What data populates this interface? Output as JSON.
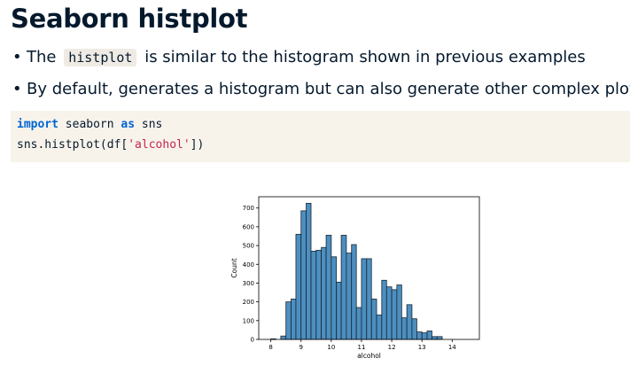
{
  "slide": {
    "title": "Seaborn histplot",
    "bullets": [
      {
        "before": "The",
        "code": "histplot",
        "after": "is similar to the histogram shown in previous examples"
      },
      {
        "text": "By default, generates a histogram but can also generate other complex plots"
      }
    ],
    "code": {
      "line1": {
        "kw1": "import",
        "mod": " seaborn ",
        "kw2": "as",
        "alias": " sns"
      },
      "line2": {
        "pre": "sns.histplot(df[",
        "str": "'alcohol'",
        "post": "])"
      }
    }
  },
  "chart_data": {
    "type": "bar",
    "xlabel": "alcohol",
    "ylabel": "Count",
    "xlim": [
      7.6,
      14.9
    ],
    "ylim": [
      0,
      760
    ],
    "xticks": [
      8,
      9,
      10,
      11,
      12,
      13,
      14
    ],
    "yticks": [
      0,
      100,
      200,
      300,
      400,
      500,
      600,
      700
    ],
    "bar_color": "#4c8fc0",
    "bar_edge_color": "#1a2533",
    "bins": [
      {
        "x0": 8.0,
        "x1": 8.17,
        "value": 3
      },
      {
        "x0": 8.17,
        "x1": 8.33,
        "value": 0
      },
      {
        "x0": 8.33,
        "x1": 8.5,
        "value": 18
      },
      {
        "x0": 8.5,
        "x1": 8.67,
        "value": 200
      },
      {
        "x0": 8.67,
        "x1": 8.83,
        "value": 215
      },
      {
        "x0": 8.83,
        "x1": 9.0,
        "value": 560
      },
      {
        "x0": 9.0,
        "x1": 9.17,
        "value": 685
      },
      {
        "x0": 9.17,
        "x1": 9.33,
        "value": 725
      },
      {
        "x0": 9.33,
        "x1": 9.5,
        "value": 470
      },
      {
        "x0": 9.5,
        "x1": 9.67,
        "value": 475
      },
      {
        "x0": 9.67,
        "x1": 9.83,
        "value": 490
      },
      {
        "x0": 9.83,
        "x1": 10.0,
        "value": 555
      },
      {
        "x0": 10.0,
        "x1": 10.17,
        "value": 440
      },
      {
        "x0": 10.17,
        "x1": 10.33,
        "value": 305
      },
      {
        "x0": 10.33,
        "x1": 10.5,
        "value": 555
      },
      {
        "x0": 10.5,
        "x1": 10.67,
        "value": 460
      },
      {
        "x0": 10.67,
        "x1": 10.83,
        "value": 505
      },
      {
        "x0": 10.83,
        "x1": 11.0,
        "value": 170
      },
      {
        "x0": 11.0,
        "x1": 11.17,
        "value": 430
      },
      {
        "x0": 11.17,
        "x1": 11.33,
        "value": 430
      },
      {
        "x0": 11.33,
        "x1": 11.5,
        "value": 215
      },
      {
        "x0": 11.5,
        "x1": 11.67,
        "value": 130
      },
      {
        "x0": 11.67,
        "x1": 11.83,
        "value": 315
      },
      {
        "x0": 11.83,
        "x1": 12.0,
        "value": 280
      },
      {
        "x0": 12.0,
        "x1": 12.17,
        "value": 265
      },
      {
        "x0": 12.17,
        "x1": 12.33,
        "value": 290
      },
      {
        "x0": 12.33,
        "x1": 12.5,
        "value": 115
      },
      {
        "x0": 12.5,
        "x1": 12.67,
        "value": 185
      },
      {
        "x0": 12.67,
        "x1": 12.83,
        "value": 110
      },
      {
        "x0": 12.83,
        "x1": 13.0,
        "value": 40
      },
      {
        "x0": 13.0,
        "x1": 13.17,
        "value": 35
      },
      {
        "x0": 13.17,
        "x1": 13.33,
        "value": 45
      },
      {
        "x0": 13.33,
        "x1": 13.5,
        "value": 15
      },
      {
        "x0": 13.5,
        "x1": 13.67,
        "value": 15
      },
      {
        "x0": 13.67,
        "x1": 13.83,
        "value": 0
      },
      {
        "x0": 13.83,
        "x1": 14.0,
        "value": 0
      },
      {
        "x0": 14.0,
        "x1": 14.17,
        "value": 0
      }
    ]
  }
}
